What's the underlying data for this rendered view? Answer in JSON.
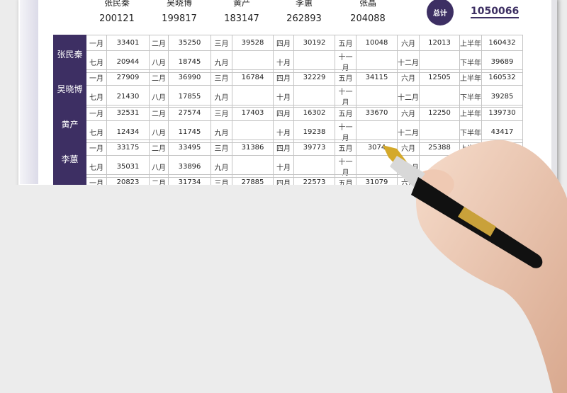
{
  "summary": {
    "people": [
      {
        "name": "张民秦",
        "total": "200121"
      },
      {
        "name": "吴晓博",
        "total": "199817"
      },
      {
        "name": "黄产",
        "total": "183147"
      },
      {
        "name": "李蕙",
        "total": "262893"
      },
      {
        "name": "张晶",
        "total": "204088"
      }
    ],
    "total_label": "总计",
    "total_value": "1050066"
  },
  "labels": {
    "row1": [
      "一月",
      "二月",
      "三月",
      "四月",
      "五月",
      "六月",
      "上半年"
    ],
    "row2": [
      "七月",
      "八月",
      "九月",
      "十月",
      "十一月",
      "十二月",
      "下半年"
    ]
  },
  "blocks": [
    {
      "name": "张民秦",
      "row1": [
        "33401",
        "35250",
        "39528",
        "30192",
        "10048",
        "12013",
        "160432"
      ],
      "row2": [
        "20944",
        "18745",
        "",
        "",
        "",
        "",
        "39689"
      ]
    },
    {
      "name": "吴晓博",
      "row1": [
        "27909",
        "36990",
        "16784",
        "32229",
        "34115",
        "12505",
        "160532"
      ],
      "row2": [
        "21430",
        "17855",
        "",
        "",
        "",
        "",
        "39285"
      ]
    },
    {
      "name": "黄产",
      "row1": [
        "32531",
        "27574",
        "17403",
        "16302",
        "33670",
        "12250",
        "139730"
      ],
      "row2": [
        "12434",
        "11745",
        "",
        "19238",
        "",
        "",
        "43417"
      ]
    },
    {
      "name": "李蕙",
      "row1": [
        "33175",
        "33495",
        "31386",
        "39773",
        "3074",
        "25388",
        ""
      ],
      "row2": [
        "35031",
        "33896",
        "",
        "",
        "",
        "",
        ""
      ]
    },
    {
      "name": "",
      "row1": [
        "20823",
        "31734",
        "27885",
        "22573",
        "31079",
        "",
        ""
      ],
      "row2": [
        "",
        "",
        "",
        "",
        "",
        "",
        ""
      ]
    }
  ],
  "colors": {
    "accent": "#3d2f63",
    "background": "#ececec"
  }
}
